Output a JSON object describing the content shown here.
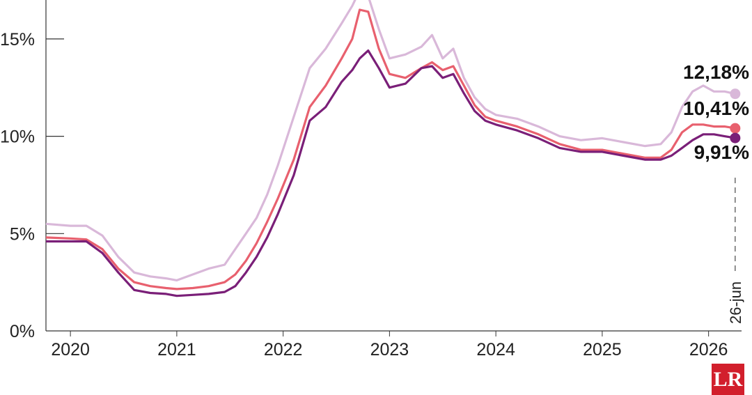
{
  "chart_data": {
    "type": "line",
    "title": "",
    "xlabel": "",
    "ylabel": "",
    "ylim": [
      0,
      17
    ],
    "y_ticks": [
      "0%",
      "5%",
      "10%",
      "15%"
    ],
    "y_tick_values": [
      0,
      5,
      10,
      15
    ],
    "x_ticks": [
      "2020",
      "2021",
      "2022",
      "2023",
      "2024",
      "2025",
      "2026"
    ],
    "x_tick_values": [
      2020,
      2021,
      2022,
      2023,
      2024,
      2025,
      2026
    ],
    "xlim": [
      2019.77,
      2026.31
    ],
    "grid": false,
    "legend": "none",
    "series": [
      {
        "color": "#d9b8d9",
        "end_label": "12,18%",
        "points": [
          [
            2019.77,
            5.5
          ],
          [
            2020.0,
            5.4
          ],
          [
            2020.15,
            5.4
          ],
          [
            2020.3,
            4.9
          ],
          [
            2020.45,
            3.8
          ],
          [
            2020.6,
            3.0
          ],
          [
            2020.75,
            2.8
          ],
          [
            2020.9,
            2.7
          ],
          [
            2021.0,
            2.6
          ],
          [
            2021.15,
            2.9
          ],
          [
            2021.3,
            3.2
          ],
          [
            2021.45,
            3.4
          ],
          [
            2021.55,
            4.2
          ],
          [
            2021.65,
            5.0
          ],
          [
            2021.75,
            5.8
          ],
          [
            2021.85,
            7.0
          ],
          [
            2021.95,
            8.5
          ],
          [
            2022.1,
            11.0
          ],
          [
            2022.25,
            13.5
          ],
          [
            2022.4,
            14.5
          ],
          [
            2022.55,
            15.8
          ],
          [
            2022.65,
            16.7
          ],
          [
            2022.72,
            17.5
          ],
          [
            2022.8,
            17.2
          ],
          [
            2022.9,
            15.5
          ],
          [
            2023.0,
            14.0
          ],
          [
            2023.15,
            14.2
          ],
          [
            2023.3,
            14.6
          ],
          [
            2023.4,
            15.2
          ],
          [
            2023.5,
            14.0
          ],
          [
            2023.6,
            14.5
          ],
          [
            2023.7,
            13.0
          ],
          [
            2023.8,
            12.0
          ],
          [
            2023.9,
            11.4
          ],
          [
            2024.0,
            11.1
          ],
          [
            2024.2,
            10.9
          ],
          [
            2024.4,
            10.5
          ],
          [
            2024.6,
            10.0
          ],
          [
            2024.8,
            9.8
          ],
          [
            2025.0,
            9.9
          ],
          [
            2025.2,
            9.7
          ],
          [
            2025.4,
            9.5
          ],
          [
            2025.55,
            9.6
          ],
          [
            2025.65,
            10.2
          ],
          [
            2025.75,
            11.5
          ],
          [
            2025.85,
            12.3
          ],
          [
            2025.95,
            12.6
          ],
          [
            2026.05,
            12.3
          ],
          [
            2026.15,
            12.3
          ],
          [
            2026.25,
            12.18
          ]
        ]
      },
      {
        "color": "#e8606e",
        "end_label": "10,41%",
        "points": [
          [
            2019.77,
            4.8
          ],
          [
            2020.0,
            4.75
          ],
          [
            2020.15,
            4.7
          ],
          [
            2020.3,
            4.2
          ],
          [
            2020.45,
            3.2
          ],
          [
            2020.6,
            2.5
          ],
          [
            2020.75,
            2.3
          ],
          [
            2020.9,
            2.2
          ],
          [
            2021.0,
            2.15
          ],
          [
            2021.15,
            2.2
          ],
          [
            2021.3,
            2.3
          ],
          [
            2021.45,
            2.5
          ],
          [
            2021.55,
            2.9
          ],
          [
            2021.65,
            3.6
          ],
          [
            2021.75,
            4.5
          ],
          [
            2021.85,
            5.6
          ],
          [
            2021.95,
            6.8
          ],
          [
            2022.1,
            8.8
          ],
          [
            2022.25,
            11.5
          ],
          [
            2022.4,
            12.6
          ],
          [
            2022.55,
            14.0
          ],
          [
            2022.65,
            15.0
          ],
          [
            2022.72,
            16.5
          ],
          [
            2022.8,
            16.4
          ],
          [
            2022.9,
            14.5
          ],
          [
            2023.0,
            13.2
          ],
          [
            2023.15,
            13.0
          ],
          [
            2023.3,
            13.5
          ],
          [
            2023.4,
            13.8
          ],
          [
            2023.5,
            13.4
          ],
          [
            2023.6,
            13.6
          ],
          [
            2023.7,
            12.6
          ],
          [
            2023.8,
            11.6
          ],
          [
            2023.9,
            11.0
          ],
          [
            2024.0,
            10.8
          ],
          [
            2024.2,
            10.5
          ],
          [
            2024.4,
            10.1
          ],
          [
            2024.6,
            9.6
          ],
          [
            2024.8,
            9.3
          ],
          [
            2025.0,
            9.3
          ],
          [
            2025.2,
            9.1
          ],
          [
            2025.4,
            8.9
          ],
          [
            2025.55,
            8.9
          ],
          [
            2025.65,
            9.3
          ],
          [
            2025.75,
            10.2
          ],
          [
            2025.85,
            10.6
          ],
          [
            2025.95,
            10.6
          ],
          [
            2026.05,
            10.5
          ],
          [
            2026.15,
            10.5
          ],
          [
            2026.25,
            10.41
          ]
        ]
      },
      {
        "color": "#7a1f78",
        "end_label": "9,91%",
        "points": [
          [
            2019.77,
            4.6
          ],
          [
            2020.0,
            4.6
          ],
          [
            2020.15,
            4.6
          ],
          [
            2020.3,
            4.0
          ],
          [
            2020.45,
            3.0
          ],
          [
            2020.6,
            2.1
          ],
          [
            2020.75,
            1.95
          ],
          [
            2020.9,
            1.9
          ],
          [
            2021.0,
            1.8
          ],
          [
            2021.15,
            1.85
          ],
          [
            2021.3,
            1.9
          ],
          [
            2021.45,
            2.0
          ],
          [
            2021.55,
            2.3
          ],
          [
            2021.65,
            3.0
          ],
          [
            2021.75,
            3.8
          ],
          [
            2021.85,
            4.8
          ],
          [
            2021.95,
            6.0
          ],
          [
            2022.1,
            8.0
          ],
          [
            2022.25,
            10.8
          ],
          [
            2022.4,
            11.5
          ],
          [
            2022.55,
            12.8
          ],
          [
            2022.65,
            13.4
          ],
          [
            2022.72,
            14.0
          ],
          [
            2022.8,
            14.4
          ],
          [
            2022.9,
            13.5
          ],
          [
            2023.0,
            12.5
          ],
          [
            2023.15,
            12.7
          ],
          [
            2023.3,
            13.5
          ],
          [
            2023.4,
            13.6
          ],
          [
            2023.5,
            13.0
          ],
          [
            2023.6,
            13.2
          ],
          [
            2023.7,
            12.2
          ],
          [
            2023.8,
            11.3
          ],
          [
            2023.9,
            10.8
          ],
          [
            2024.0,
            10.6
          ],
          [
            2024.2,
            10.3
          ],
          [
            2024.4,
            9.9
          ],
          [
            2024.6,
            9.4
          ],
          [
            2024.8,
            9.2
          ],
          [
            2025.0,
            9.2
          ],
          [
            2025.2,
            9.0
          ],
          [
            2025.4,
            8.8
          ],
          [
            2025.55,
            8.8
          ],
          [
            2025.65,
            9.0
          ],
          [
            2025.75,
            9.4
          ],
          [
            2025.85,
            9.8
          ],
          [
            2025.95,
            10.1
          ],
          [
            2026.05,
            10.1
          ],
          [
            2026.15,
            10.0
          ],
          [
            2026.25,
            9.91
          ]
        ]
      }
    ],
    "date_annotation": "26-jun"
  },
  "logo": {
    "text": "LR",
    "color": "#d21f2c"
  }
}
